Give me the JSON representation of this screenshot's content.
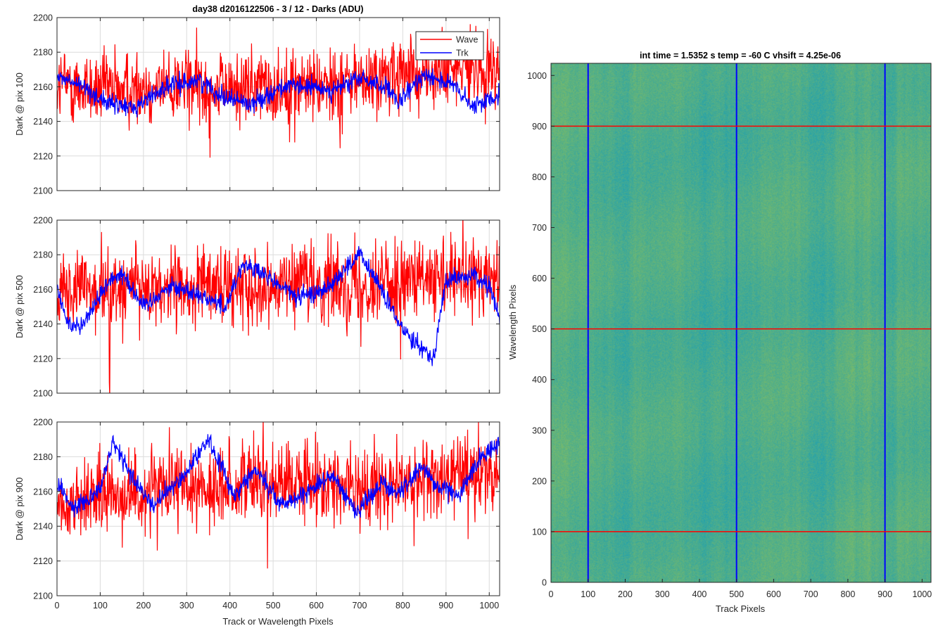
{
  "figure_title": "day38 d2016122506 - 3 / 12 - Darks (ADU)",
  "shared_xlabel": "Track or Wavelength Pixels",
  "legend": {
    "entries": [
      "Wave",
      "Trk"
    ],
    "placement": "top-right"
  },
  "colors": {
    "wave": "#ff0000",
    "trk": "#0000ff",
    "axis": "#262626",
    "grid": "#dcdcdc"
  },
  "chart_data": [
    {
      "type": "line",
      "ylabel": "Dark @ pix 100",
      "xlim": [
        0,
        1024
      ],
      "ylim": [
        2100,
        2200
      ],
      "xticks": [
        0,
        100,
        200,
        300,
        400,
        500,
        600,
        700,
        800,
        900,
        1000
      ],
      "yticks": [
        2100,
        2120,
        2140,
        2160,
        2180,
        2200
      ],
      "grid": true,
      "series": [
        {
          "name": "Wave",
          "anchors": [
            [
              0,
              2162
            ],
            [
              100,
              2158
            ],
            [
              200,
              2160
            ],
            [
              300,
              2161
            ],
            [
              400,
              2160
            ],
            [
              500,
              2159
            ],
            [
              600,
              2162
            ],
            [
              700,
              2163
            ],
            [
              800,
              2166
            ],
            [
              900,
              2168
            ],
            [
              1024,
              2172
            ]
          ],
          "noise": 11
        },
        {
          "name": "Trk",
          "anchors": [
            [
              0,
              2166
            ],
            [
              60,
              2160
            ],
            [
              120,
              2150
            ],
            [
              180,
              2148
            ],
            [
              250,
              2160
            ],
            [
              330,
              2164
            ],
            [
              380,
              2155
            ],
            [
              450,
              2150
            ],
            [
              520,
              2160
            ],
            [
              580,
              2160
            ],
            [
              640,
              2158
            ],
            [
              700,
              2165
            ],
            [
              760,
              2160
            ],
            [
              790,
              2150
            ],
            [
              850,
              2168
            ],
            [
              920,
              2160
            ],
            [
              960,
              2148
            ],
            [
              1024,
              2156
            ]
          ],
          "noise": 5
        }
      ]
    },
    {
      "type": "line",
      "ylabel": "Dark @ pix 500",
      "xlim": [
        0,
        1024
      ],
      "ylim": [
        2100,
        2200
      ],
      "xticks": [
        0,
        100,
        200,
        300,
        400,
        500,
        600,
        700,
        800,
        900,
        1000
      ],
      "yticks": [
        2100,
        2120,
        2140,
        2160,
        2180,
        2200
      ],
      "grid": true,
      "series": [
        {
          "name": "Wave",
          "anchors": [
            [
              0,
              2160
            ],
            [
              100,
              2158
            ],
            [
              200,
              2162
            ],
            [
              300,
              2160
            ],
            [
              400,
              2162
            ],
            [
              500,
              2163
            ],
            [
              600,
              2164
            ],
            [
              700,
              2162
            ],
            [
              800,
              2165
            ],
            [
              900,
              2164
            ],
            [
              1024,
              2167
            ]
          ],
          "noise": 11
        },
        {
          "name": "Trk",
          "anchors": [
            [
              0,
              2160
            ],
            [
              25,
              2140
            ],
            [
              60,
              2140
            ],
            [
              120,
              2165
            ],
            [
              150,
              2170
            ],
            [
              200,
              2150
            ],
            [
              260,
              2162
            ],
            [
              320,
              2158
            ],
            [
              390,
              2150
            ],
            [
              430,
              2175
            ],
            [
              480,
              2168
            ],
            [
              560,
              2155
            ],
            [
              620,
              2160
            ],
            [
              660,
              2170
            ],
            [
              700,
              2180
            ],
            [
              740,
              2165
            ],
            [
              790,
              2140
            ],
            [
              830,
              2130
            ],
            [
              870,
              2120
            ],
            [
              900,
              2165
            ],
            [
              960,
              2168
            ],
            [
              1000,
              2162
            ],
            [
              1024,
              2142
            ]
          ],
          "noise": 5
        }
      ]
    },
    {
      "type": "line",
      "ylabel": "Dark @ pix 900",
      "xlim": [
        0,
        1024
      ],
      "ylim": [
        2100,
        2200
      ],
      "xticks": [
        0,
        100,
        200,
        300,
        400,
        500,
        600,
        700,
        800,
        900,
        1000
      ],
      "yticks": [
        2100,
        2120,
        2140,
        2160,
        2180,
        2200
      ],
      "grid": true,
      "series": [
        {
          "name": "Wave",
          "anchors": [
            [
              0,
              2150
            ],
            [
              100,
              2158
            ],
            [
              200,
              2160
            ],
            [
              300,
              2160
            ],
            [
              400,
              2163
            ],
            [
              500,
              2165
            ],
            [
              600,
              2166
            ],
            [
              700,
              2162
            ],
            [
              800,
              2165
            ],
            [
              900,
              2168
            ],
            [
              1024,
              2172
            ]
          ],
          "noise": 11
        },
        {
          "name": "Trk",
          "anchors": [
            [
              0,
              2165
            ],
            [
              40,
              2150
            ],
            [
              100,
              2162
            ],
            [
              130,
              2188
            ],
            [
              170,
              2170
            ],
            [
              220,
              2152
            ],
            [
              280,
              2165
            ],
            [
              350,
              2190
            ],
            [
              410,
              2158
            ],
            [
              460,
              2173
            ],
            [
              520,
              2152
            ],
            [
              600,
              2163
            ],
            [
              640,
              2170
            ],
            [
              690,
              2148
            ],
            [
              750,
              2165
            ],
            [
              790,
              2158
            ],
            [
              840,
              2175
            ],
            [
              880,
              2163
            ],
            [
              930,
              2158
            ],
            [
              980,
              2180
            ],
            [
              1024,
              2188
            ]
          ],
          "noise": 5
        }
      ]
    },
    {
      "type": "heatmap",
      "title": "int time = 1.5352 s    temp = -60 C    vhsift = 4.25e-06",
      "xlabel": "Track Pixels",
      "ylabel": "Wavelength Pixels",
      "xlim": [
        0,
        1024
      ],
      "ylim": [
        0,
        1024
      ],
      "xticks": [
        0,
        100,
        200,
        300,
        400,
        500,
        600,
        700,
        800,
        900,
        1000
      ],
      "yticks": [
        0,
        100,
        200,
        300,
        400,
        500,
        600,
        700,
        800,
        900,
        1000
      ],
      "colormap": "parula",
      "color_range": [
        2100,
        2200
      ],
      "typical_value": 2160,
      "vertical_markers": {
        "color": "#0000ff",
        "x": [
          100,
          500,
          900
        ]
      },
      "horizontal_markers": {
        "color": "#ff0000",
        "y": [
          100,
          500,
          900
        ]
      }
    }
  ]
}
